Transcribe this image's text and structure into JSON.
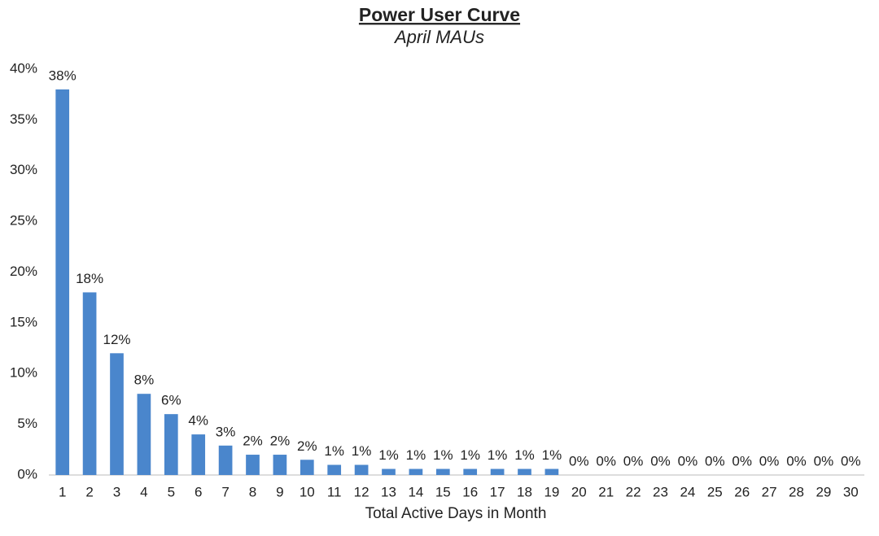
{
  "chart_data": {
    "type": "bar",
    "title": "Power User Curve",
    "subtitle": "April MAUs",
    "x_label": "Total Active Days in Month",
    "categories": [
      "1",
      "2",
      "3",
      "4",
      "5",
      "6",
      "7",
      "8",
      "9",
      "10",
      "11",
      "12",
      "13",
      "14",
      "15",
      "16",
      "17",
      "18",
      "19",
      "20",
      "21",
      "22",
      "23",
      "24",
      "25",
      "26",
      "27",
      "28",
      "29",
      "30"
    ],
    "values": [
      38,
      18,
      12,
      8,
      6,
      4,
      2.9,
      2,
      2,
      1.5,
      1,
      1,
      0.6,
      0.6,
      0.6,
      0.6,
      0.6,
      0.6,
      0.6,
      0,
      0,
      0,
      0,
      0,
      0,
      0,
      0,
      0,
      0,
      0
    ],
    "value_labels": [
      "38%",
      "18%",
      "12%",
      "8%",
      "6%",
      "4%",
      "3%",
      "2%",
      "2%",
      "2%",
      "1%",
      "1%",
      "1%",
      "1%",
      "1%",
      "1%",
      "1%",
      "1%",
      "1%",
      "0%",
      "0%",
      "0%",
      "0%",
      "0%",
      "0%",
      "0%",
      "0%",
      "0%",
      "0%",
      "0%"
    ],
    "color": "#4a86cc",
    "ylim": [
      0,
      40
    ],
    "yticks": [
      {
        "value": 0,
        "label": "0%"
      },
      {
        "value": 5,
        "label": "5%"
      },
      {
        "value": 10,
        "label": "10%"
      },
      {
        "value": 15,
        "label": "15%"
      },
      {
        "value": 20,
        "label": "20%"
      },
      {
        "value": 25,
        "label": "25%"
      },
      {
        "value": 30,
        "label": "30%"
      },
      {
        "value": 35,
        "label": "35%"
      },
      {
        "value": 40,
        "label": "40%"
      }
    ],
    "grid": false
  }
}
